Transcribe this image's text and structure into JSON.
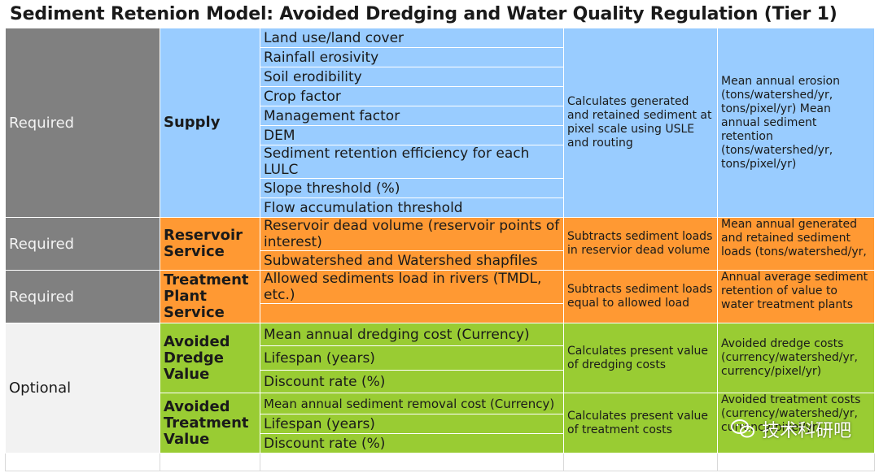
{
  "title": "Sediment Retenion Model: Avoided Dredging and Water Quality Regulation (Tier 1)",
  "sections": [
    {
      "status": "Required",
      "group": "Supply",
      "inputs": [
        "Land use/land cover",
        "Rainfall erosivity",
        "Soil erodibility",
        "Crop factor",
        "Management factor",
        "DEM",
        "Sediment retention efficiency for each LULC",
        "Slope threshold (%)",
        "Flow accumulation threshold"
      ],
      "process": "Calculates generated and retained sediment at pixel scale using USLE and routing",
      "output": "Mean annual erosion (tons/watershed/yr, tons/pixel/yr)    Mean annual sediment retention (tons/watershed/yr, tons/pixel/yr)"
    },
    {
      "status": "Required",
      "group": "Reservoir Service",
      "inputs": [
        "Reservoir dead volume (reservoir points of interest)",
        "Subwatershed and Watershed shapfiles"
      ],
      "process": "Subtracts sediment loads in reservior dead volume",
      "output": "Mean annual generated and retained sediment loads (tons/watershed/yr,"
    },
    {
      "status": "Required",
      "group": "Treatment Plant Service",
      "inputs": [
        "Allowed sediments load in rivers (TMDL, etc.)",
        ""
      ],
      "process": "Subtracts sediment loads equal to allowed load",
      "output": "Annual average sediment retention of value to water treatment plants"
    },
    {
      "status": "Optional",
      "group": "Avoided Dredge Value",
      "inputs": [
        "Mean annual dredging cost (Currency)",
        "Lifespan (years)",
        "Discount rate (%)"
      ],
      "process": "Calculates present value of dredging costs",
      "output": "Avoided dredge costs (currency/watershed/yr, currency/pixel/yr)"
    },
    {
      "group": "Avoided Treatment Value",
      "inputs": [
        "Mean annual sediment removal cost (Currency)",
        "Lifespan (years)",
        "Discount rate (%)"
      ],
      "process": "Calculates present value of treatment costs",
      "output": "Avoided treatment costs (currency/watershed/yr, currency/pixel/yr)"
    }
  ],
  "watermark": {
    "text": "技术科研吧",
    "icon": "wechat-icon"
  },
  "colors": {
    "supply": "#99ccff",
    "service": "#ff9933",
    "value": "#99cc33",
    "required": "#808080",
    "optional": "#f2f2f2"
  }
}
